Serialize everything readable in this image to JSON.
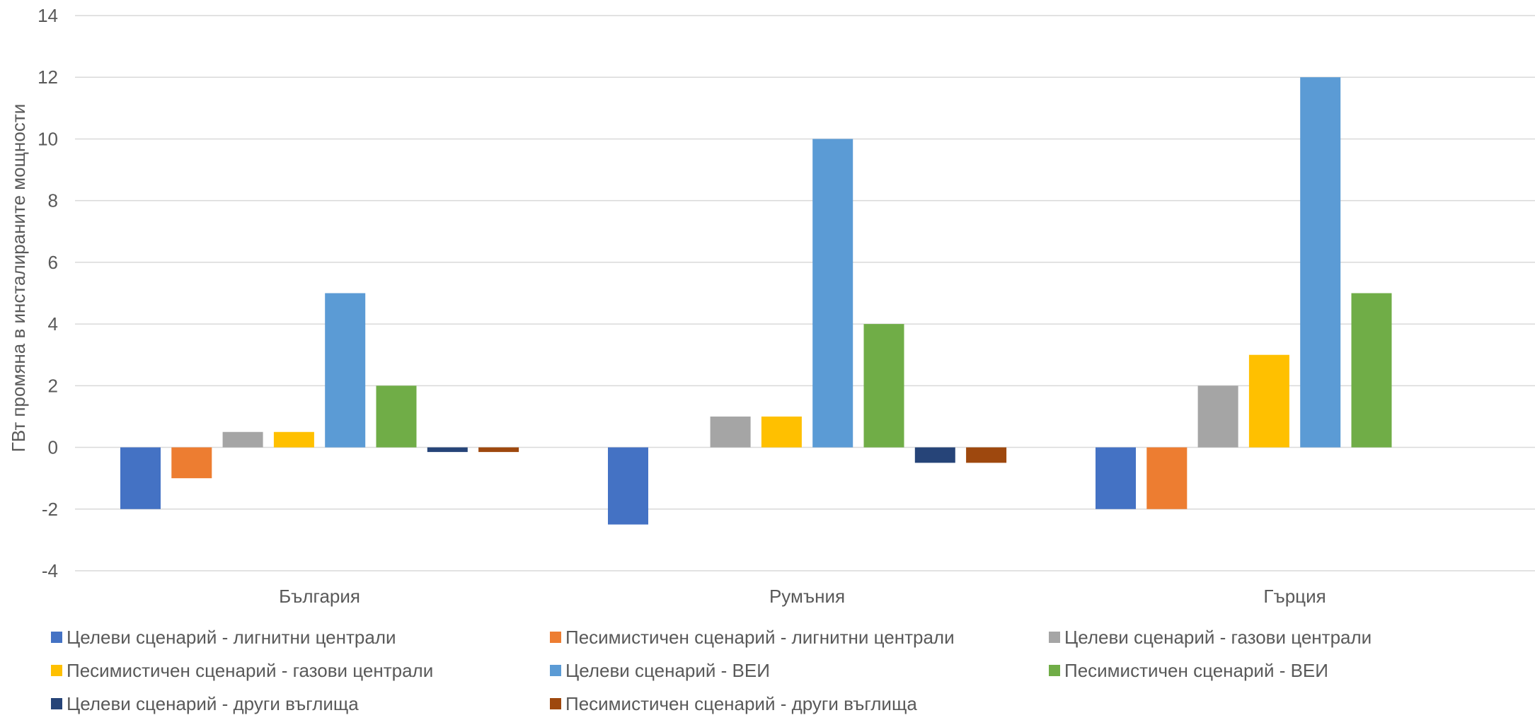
{
  "chart_data": {
    "type": "bar",
    "title": "",
    "xlabel": "",
    "ylabel": "ГВт промяна в инсталираните мощности",
    "ylim": [
      -4,
      14
    ],
    "yticks": [
      -4,
      -2,
      0,
      2,
      4,
      6,
      8,
      10,
      12,
      14
    ],
    "grid": true,
    "legend_position": "bottom",
    "categories": [
      "България",
      "Румъния",
      "Гърция"
    ],
    "series": [
      {
        "name": "Целеви сценарий - лигнитни централи",
        "color": "#4472C4",
        "values": [
          -2,
          -2.5,
          -2
        ]
      },
      {
        "name": "Песимистичен сценарий - лигнитни централи",
        "color": "#ED7D31",
        "values": [
          -1,
          0,
          -2
        ]
      },
      {
        "name": "Целеви сценарий - газови централи",
        "color": "#A5A5A5",
        "values": [
          0.5,
          1,
          2
        ]
      },
      {
        "name": "Песимистичен сценарий - газови централи",
        "color": "#FFC000",
        "values": [
          0.5,
          1,
          3
        ]
      },
      {
        "name": "Целеви сценарий - ВЕИ",
        "color": "#5B9BD5",
        "values": [
          5,
          10,
          12
        ]
      },
      {
        "name": "Песимистичен сценарий - ВЕИ",
        "color": "#70AD47",
        "values": [
          2,
          4,
          5
        ]
      },
      {
        "name": "Целеви сценарий - други въглища",
        "color": "#264478",
        "values": [
          -0.15,
          -0.5,
          0
        ]
      },
      {
        "name": "Песимистичен сценарий - други въглища",
        "color": "#9E480E",
        "values": [
          -0.15,
          -0.5,
          0
        ]
      }
    ]
  }
}
